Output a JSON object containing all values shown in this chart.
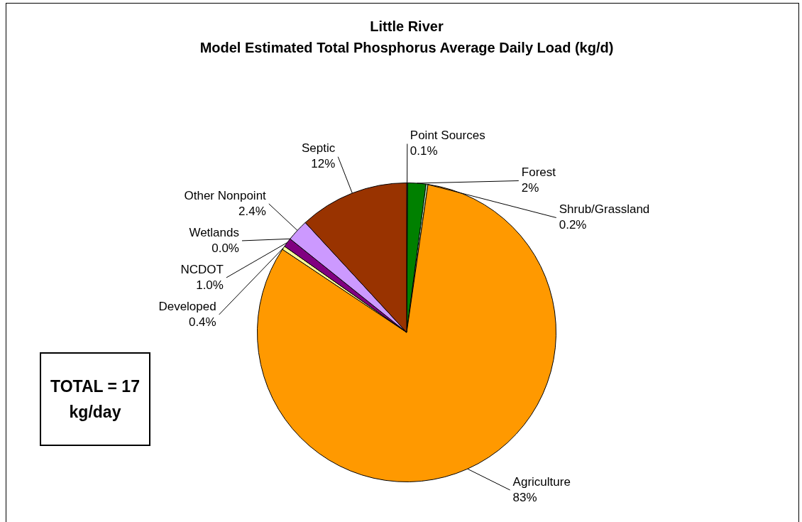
{
  "chart_data": {
    "type": "pie",
    "title": "Little River",
    "subtitle": "Model Estimated Total Phosphorus Average Daily Load (kg/d)",
    "categories": [
      "Point Sources",
      "Forest",
      "Shrub/Grassland",
      "Agriculture",
      "Developed",
      "NCDOT",
      "Wetlands",
      "Other Nonpoint",
      "Septic"
    ],
    "values": [
      0.1,
      2,
      0.2,
      83,
      0.4,
      1.0,
      0.0,
      2.4,
      12
    ],
    "colors": [
      "#c0c0c0",
      "#008000",
      "#ccffcc",
      "#ff9900",
      "#ffff99",
      "#800080",
      "#339966",
      "#cc99ff",
      "#993300"
    ],
    "value_labels": [
      "0.1%",
      "2%",
      "0.2%",
      "83%",
      "0.4%",
      "1.0%",
      "0.0%",
      "2.4%",
      "12%"
    ],
    "annotations": [
      "TOTAL = 17 kg/day"
    ]
  }
}
